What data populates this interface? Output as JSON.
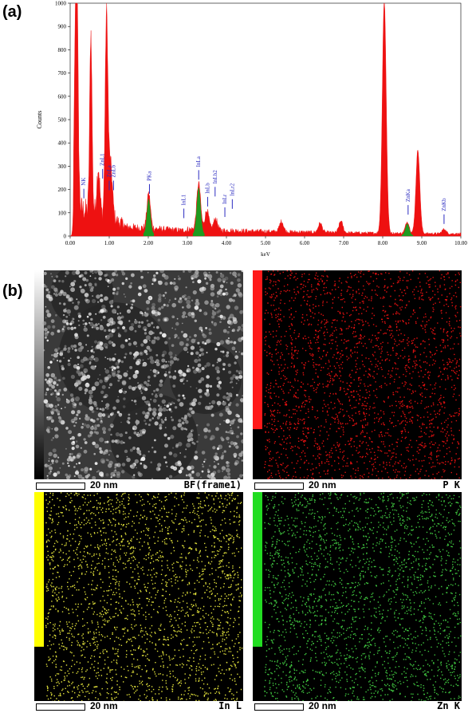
{
  "labels": {
    "panel_a": "(a)",
    "panel_b": "(b)"
  },
  "chart_data": {
    "type": "line",
    "xlabel": "keV",
    "ylabel": "Counts",
    "xlim": [
      0,
      10
    ],
    "ylim": [
      0,
      1000
    ],
    "x_ticks": [
      "0.00",
      "1.00",
      "2.00",
      "3.00",
      "4.00",
      "5.00",
      "6.00",
      "7.00",
      "8.00",
      "9.00",
      "10.00"
    ],
    "y_ticks": [
      "0",
      "100",
      "200",
      "300",
      "400",
      "500",
      "600",
      "700",
      "800",
      "900",
      "1000"
    ],
    "series_colors": {
      "spectrum": "#ee1111",
      "highlight": "#1f9a1f"
    },
    "peaks": [
      {
        "x": 0.15,
        "y": 1000,
        "w": 0.035
      },
      {
        "x": 0.19,
        "y": 300,
        "w": 0.03
      },
      {
        "x": 0.53,
        "y": 775,
        "w": 0.03
      },
      {
        "x": 0.72,
        "y": 200,
        "w": 0.04
      },
      {
        "x": 0.93,
        "y": 860,
        "w": 0.035
      },
      {
        "x": 1.03,
        "y": 240,
        "w": 0.05
      },
      {
        "x": 2.01,
        "y": 150,
        "w": 0.045,
        "green": true
      },
      {
        "x": 3.29,
        "y": 200,
        "w": 0.05,
        "green": true
      },
      {
        "x": 3.5,
        "y": 85,
        "w": 0.05
      },
      {
        "x": 3.72,
        "y": 50,
        "w": 0.05
      },
      {
        "x": 5.41,
        "y": 45,
        "w": 0.05
      },
      {
        "x": 6.4,
        "y": 40,
        "w": 0.05
      },
      {
        "x": 6.93,
        "y": 50,
        "w": 0.05
      },
      {
        "x": 8.04,
        "y": 1000,
        "w": 0.05
      },
      {
        "x": 8.63,
        "y": 50,
        "w": 0.05,
        "green": true
      },
      {
        "x": 8.9,
        "y": 360,
        "w": 0.05
      },
      {
        "x": 9.57,
        "y": 20,
        "w": 0.05
      }
    ],
    "annotations": [
      {
        "text": "NK",
        "x": 0.35,
        "y": 210
      },
      {
        "text": "ZnL1",
        "x": 0.83,
        "y": 295
      },
      {
        "text": "ZnLa",
        "x": 1.0,
        "y": 245
      },
      {
        "text": "ZnLb",
        "x": 1.11,
        "y": 245
      },
      {
        "text": "PKa",
        "x": 2.03,
        "y": 230
      },
      {
        "text": "InL1",
        "x": 2.91,
        "y": 125
      },
      {
        "text": "InLa",
        "x": 3.29,
        "y": 290
      },
      {
        "text": "InLb",
        "x": 3.52,
        "y": 175
      },
      {
        "text": "InLb2",
        "x": 3.71,
        "y": 218
      },
      {
        "text": "InLr",
        "x": 3.96,
        "y": 130
      },
      {
        "text": "InLr2",
        "x": 4.15,
        "y": 165
      },
      {
        "text": "ZnKa",
        "x": 8.65,
        "y": 140
      },
      {
        "text": "ZnKb",
        "x": 9.57,
        "y": 100
      }
    ]
  },
  "maps": [
    {
      "label": "BF(frame1)",
      "scale": "20 nm",
      "kind": "bf",
      "bar_color": "gray"
    },
    {
      "label": "P K",
      "scale": "20 nm",
      "kind": "dots",
      "dot_color": "#e01010",
      "bar_color": "#ff1a1a",
      "bar_fill": 0.76
    },
    {
      "label": "In L",
      "scale": "20 nm",
      "kind": "dots",
      "dot_color": "#dede3a",
      "bar_color": "#ffff00",
      "bar_fill": 0.74
    },
    {
      "label": "Zn K",
      "scale": "20 nm",
      "kind": "dots",
      "dot_color": "#3fc43f",
      "bar_color": "#22dd22",
      "bar_fill": 0.74
    }
  ]
}
